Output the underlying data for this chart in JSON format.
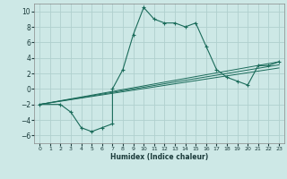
{
  "xlabel": "Humidex (Indice chaleur)",
  "ylabel": "",
  "background_color": "#cde8e6",
  "grid_color": "#b0d0ce",
  "line_color": "#1a6b5a",
  "xlim": [
    -0.5,
    23.5
  ],
  "ylim": [
    -7,
    11
  ],
  "xticks": [
    0,
    1,
    2,
    3,
    4,
    5,
    6,
    7,
    8,
    9,
    10,
    11,
    12,
    13,
    14,
    15,
    16,
    17,
    18,
    19,
    20,
    21,
    22,
    23
  ],
  "yticks": [
    -6,
    -4,
    -2,
    0,
    2,
    4,
    6,
    8,
    10
  ],
  "series": [
    [
      0,
      -2
    ],
    [
      2,
      -2
    ],
    [
      3,
      -3
    ],
    [
      4,
      -5
    ],
    [
      5,
      -5.5
    ],
    [
      6,
      -5
    ],
    [
      7,
      -4.5
    ],
    [
      7,
      0
    ],
    [
      8,
      2.5
    ],
    [
      9,
      7
    ],
    [
      10,
      10.5
    ],
    [
      11,
      9
    ],
    [
      12,
      8.5
    ],
    [
      13,
      8.5
    ],
    [
      14,
      8
    ],
    [
      15,
      8.5
    ],
    [
      16,
      5.5
    ],
    [
      17,
      2.5
    ],
    [
      18,
      1.5
    ],
    [
      19,
      1
    ],
    [
      20,
      0.5
    ],
    [
      21,
      3
    ],
    [
      22,
      3
    ],
    [
      23,
      3.5
    ]
  ],
  "line2": [
    [
      0,
      -2
    ],
    [
      23,
      3.5
    ]
  ],
  "line3": [
    [
      0,
      -2
    ],
    [
      23,
      3.1
    ]
  ],
  "line4": [
    [
      0,
      -2
    ],
    [
      23,
      2.7
    ]
  ]
}
